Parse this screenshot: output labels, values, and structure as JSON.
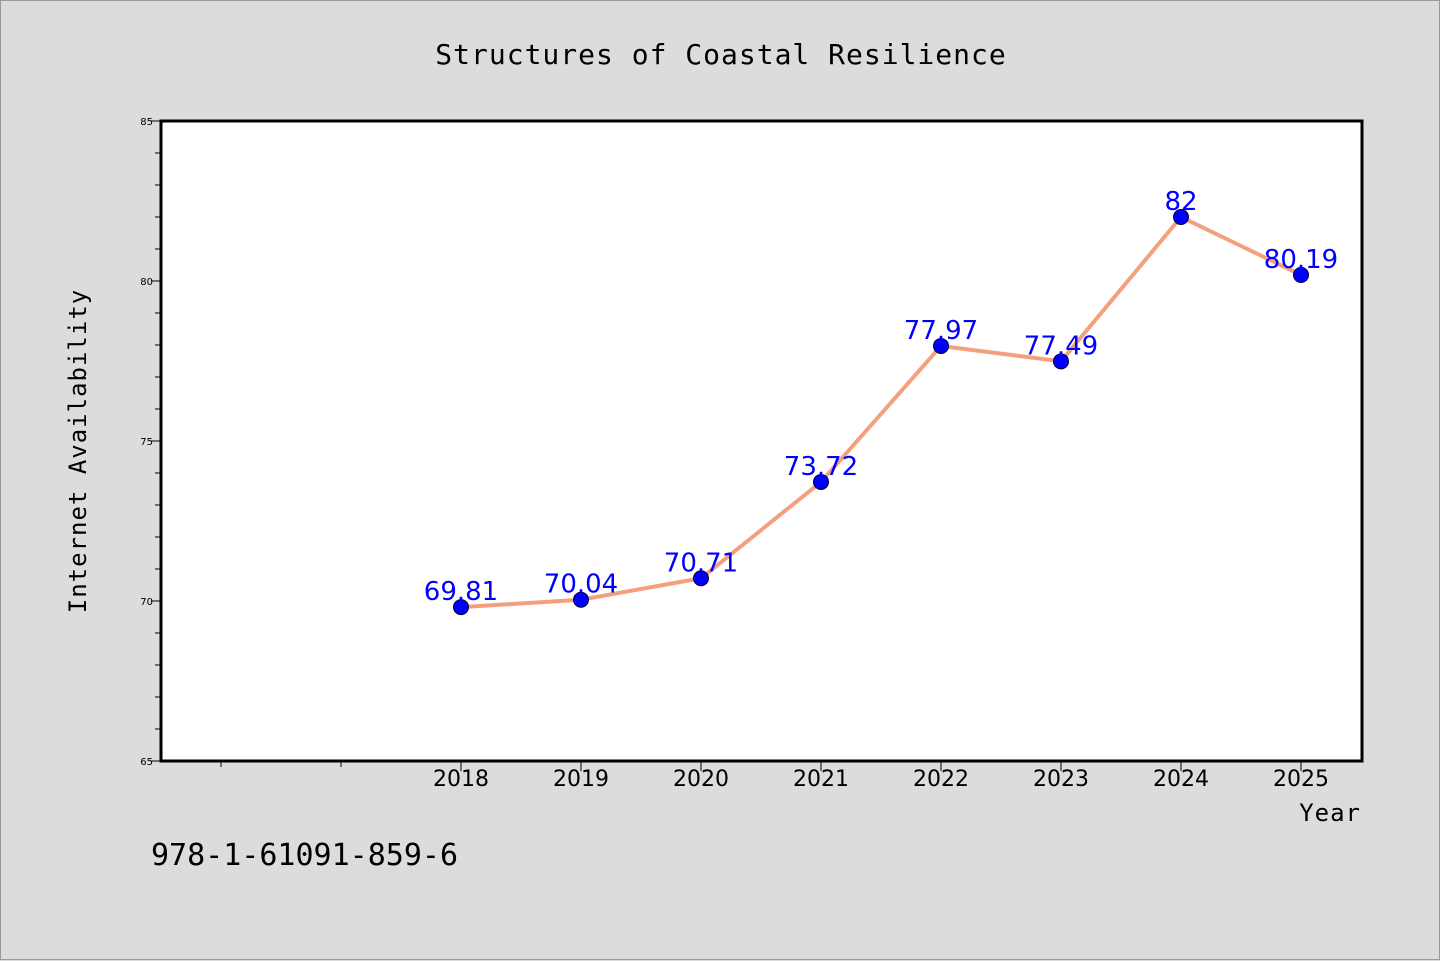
{
  "chart_data": {
    "type": "line",
    "title": "Structures of Coastal Resilience",
    "xlabel": "Year",
    "ylabel": "Internet Availability",
    "categories": [
      "2018",
      "2019",
      "2020",
      "2021",
      "2022",
      "2023",
      "2024",
      "2025"
    ],
    "values": [
      69.81,
      70.04,
      70.71,
      73.72,
      77.97,
      77.49,
      82,
      80.19
    ],
    "value_labels": [
      "69.81",
      "70.04",
      "70.71",
      "73.72",
      "77.97",
      "77.49",
      "82",
      "80.19"
    ],
    "ylim": [
      65,
      85
    ],
    "yticks": [
      "65",
      "70",
      "75",
      "80",
      "85"
    ],
    "grid": false,
    "legend": "none",
    "line_color": "#f4a07f",
    "marker_color": "#0000ff",
    "label_color": "#0000ff",
    "background_color": "#dcdcdc",
    "plot_background_color": "#ffffff"
  },
  "footer_text": "978-1-61091-859-6"
}
